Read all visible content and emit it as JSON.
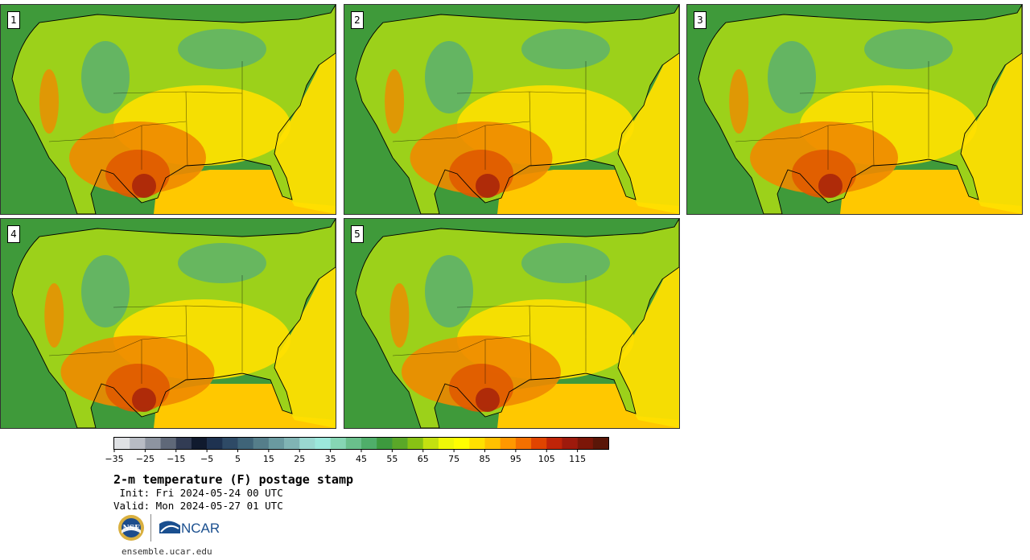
{
  "panels": [
    {
      "label": "1"
    },
    {
      "label": "2"
    },
    {
      "label": "3"
    },
    {
      "label": "4"
    },
    {
      "label": "5"
    }
  ],
  "colorbar": {
    "tick_labels": [
      "−35",
      "−25",
      "−15",
      "−5",
      "5",
      "15",
      "25",
      "35",
      "45",
      "55",
      "65",
      "75",
      "85",
      "95",
      "105",
      "115"
    ],
    "colors": [
      "#dfe1e4",
      "#b8bcc4",
      "#8d94a0",
      "#5f6878",
      "#323c54",
      "#101a2e",
      "#1e3250",
      "#2e4a66",
      "#3f6478",
      "#557e8a",
      "#6a9aa0",
      "#80b4b4",
      "#9ad8d0",
      "#9ce8dc",
      "#86d6b4",
      "#6ac08c",
      "#4fae6a",
      "#3d9a3e",
      "#5aa828",
      "#88c214",
      "#c4e010",
      "#eef808",
      "#ffff00",
      "#ffe000",
      "#ffc000",
      "#ff9800",
      "#f47000",
      "#e04400",
      "#c02408",
      "#9e1a0c",
      "#7c1608",
      "#5a1608"
    ]
  },
  "title": "2-m temperature (F) postage stamp",
  "init": " Init: Fri 2024-05-24 00 UTC",
  "valid": "Valid: Mon 2024-05-27 01 UTC",
  "logos": {
    "nsf": "NSF",
    "ncar": "NCAR"
  },
  "site": "ensemble.ucar.edu",
  "map_colors": {
    "ocean": "#3f9a3a",
    "gulf": "#ffc800",
    "land_base": "#9cd11a",
    "mountain": "#5ab070",
    "warm": "#ffe000",
    "hot": "#f08a00",
    "hotter": "#e05a00",
    "hottest": "#9e1a0c",
    "border": "#000000"
  }
}
